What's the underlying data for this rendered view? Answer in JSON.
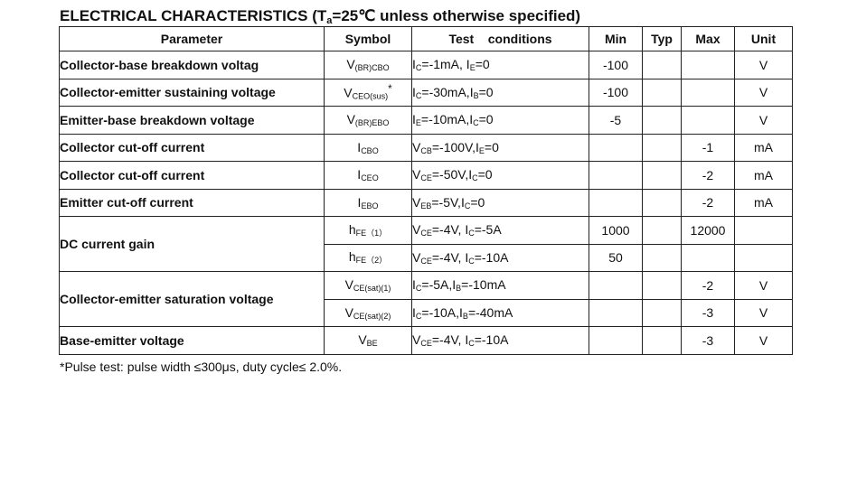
{
  "title": {
    "prefix": "ELECTRICAL CHARACTERISTICS (T",
    "sub": "a",
    "suffix": "=25℃ unless otherwise specified)"
  },
  "headers": {
    "parameter": "Parameter",
    "symbol": "Symbol",
    "conditions": "Test    conditions",
    "min": "Min",
    "typ": "Typ",
    "max": "Max",
    "unit": "Unit"
  },
  "rows": [
    {
      "param": "Collector-base breakdown voltag",
      "sym": "V",
      "sym_sub": "(BR)CBO",
      "sym_sup": "",
      "cond": [
        [
          "I",
          "C",
          "=-1mA, "
        ],
        [
          "I",
          "E",
          "=0"
        ]
      ],
      "min": "-100",
      "typ": "",
      "max": "",
      "unit": "V"
    },
    {
      "param": "Collector-emitter sustaining voltage",
      "sym": "V",
      "sym_sub": "CEO(sus)",
      "sym_sup": "*",
      "cond": [
        [
          "I",
          "C",
          "=-30mA,"
        ],
        [
          "I",
          "B",
          "=0"
        ]
      ],
      "min": "-100",
      "typ": "",
      "max": "",
      "unit": "V"
    },
    {
      "param": "Emitter-base breakdown voltage",
      "sym": "V",
      "sym_sub": "(BR)EBO",
      "sym_sup": "",
      "cond": [
        [
          "I",
          "E",
          "=-10mA,"
        ],
        [
          "I",
          "C",
          "=0"
        ]
      ],
      "min": "-5",
      "typ": "",
      "max": "",
      "unit": "V"
    },
    {
      "param": "Collector cut-off current",
      "sym": "I",
      "sym_sub": "CBO",
      "sym_sup": "",
      "cond": [
        [
          "V",
          "CB",
          "=-100V,"
        ],
        [
          "I",
          "E",
          "=0"
        ]
      ],
      "min": "",
      "typ": "",
      "max": "-1",
      "unit": "mA"
    },
    {
      "param": "Collector cut-off current",
      "sym": "I",
      "sym_sub": "CEO",
      "sym_sup": "",
      "cond": [
        [
          "V",
          "CE",
          "=-50V,"
        ],
        [
          "I",
          "C",
          "=0"
        ]
      ],
      "min": "",
      "typ": "",
      "max": "-2",
      "unit": "mA"
    },
    {
      "param": "Emitter cut-off current",
      "sym": "I",
      "sym_sub": "EBO",
      "sym_sup": "",
      "cond": [
        [
          "V",
          "EB",
          "=-5V,"
        ],
        [
          "I",
          "C",
          "=0"
        ]
      ],
      "min": "",
      "typ": "",
      "max": "-2",
      "unit": "mA"
    }
  ],
  "group_gain": {
    "param": "DC current gain",
    "rows": [
      {
        "sym": "h",
        "sym_sub": "FE（1）",
        "cond": [
          [
            "V",
            "CE",
            "=-4V, "
          ],
          [
            "I",
            "C",
            "=-5A"
          ]
        ],
        "min": "1000",
        "typ": "",
        "max": "12000",
        "unit": ""
      },
      {
        "sym": "h",
        "sym_sub": "FE（2）",
        "cond": [
          [
            "V",
            "CE",
            "=-4V, "
          ],
          [
            "I",
            "C",
            "=-10A"
          ]
        ],
        "min": "50",
        "typ": "",
        "max": "",
        "unit": ""
      }
    ]
  },
  "group_sat": {
    "param": "Collector-emitter saturation voltage",
    "rows": [
      {
        "sym": "V",
        "sym_sub": "CE(sat)(1)",
        "cond": [
          [
            "I",
            "C",
            "=-5A,"
          ],
          [
            "I",
            "B",
            "=-10mA"
          ]
        ],
        "min": "",
        "typ": "",
        "max": "-2",
        "unit": "V"
      },
      {
        "sym": "V",
        "sym_sub": "CE(sat)(2)",
        "cond": [
          [
            "I",
            "C",
            "=-10A,"
          ],
          [
            "I",
            "B",
            "=-40mA"
          ]
        ],
        "min": "",
        "typ": "",
        "max": "-3",
        "unit": "V"
      }
    ]
  },
  "last_row": {
    "param": "Base-emitter voltage",
    "sym": "V",
    "sym_sub": "BE",
    "sym_sup": "",
    "cond": [
      [
        "V",
        "CE",
        "=-4V, "
      ],
      [
        "I",
        "C",
        "=-10A"
      ]
    ],
    "min": "",
    "typ": "",
    "max": "-3",
    "unit": "V"
  },
  "note": "*Pulse test: pulse width ≤300μs, duty cycle≤ 2.0%."
}
